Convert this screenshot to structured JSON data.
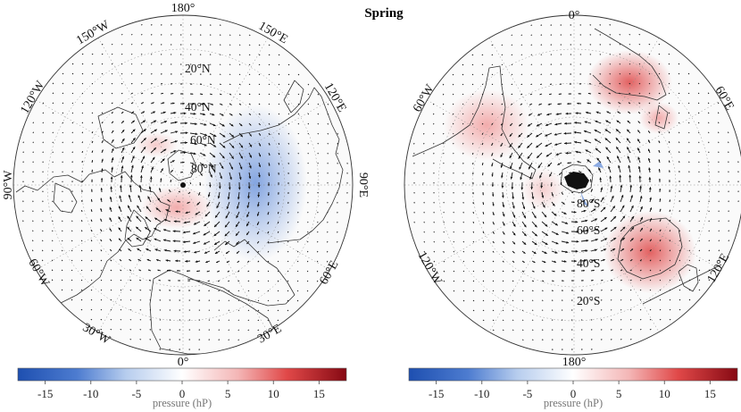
{
  "title": "Spring",
  "colorbar": {
    "label": "pressure (hP)",
    "ticks": [
      "-15",
      "-10",
      "-5",
      "0",
      "5",
      "10",
      "15"
    ],
    "tick_values": [
      -15,
      -10,
      -5,
      0,
      5,
      10,
      15
    ],
    "range": [
      -18,
      18
    ],
    "colors": {
      "low": "#2455b8",
      "mid": "#ffffff",
      "high": "#8b0a14"
    }
  },
  "north_map": {
    "lon_labels": {
      "top": "180°",
      "bottom": "0°",
      "left": "90°W",
      "right": "90°E",
      "upper_left_1": "150°W",
      "upper_left_2": "120°W",
      "upper_right_1": "150°E",
      "upper_right_2": "120°E",
      "lower_left_1": "60°W",
      "lower_left_2": "30°W",
      "lower_right_1": "60°E",
      "lower_right_2": "30°E"
    },
    "lat_labels": [
      "20°N",
      "40°N",
      "60°N",
      "80°N"
    ],
    "anomalies": [
      {
        "name": "siberia-low",
        "value": -7
      },
      {
        "name": "arctic-high",
        "value": 3
      }
    ]
  },
  "south_map": {
    "lon_labels": {
      "top": "0°",
      "bottom": "180°",
      "upper_left": "60°W",
      "upper_right": "60°E",
      "lower_left": "120°W",
      "lower_right": "120°E"
    },
    "lat_labels": [
      "80°S",
      "60°S",
      "40°S",
      "20°S"
    ],
    "anomalies": [
      {
        "name": "africa-high",
        "value": 8
      },
      {
        "name": "australia-high",
        "value": 9
      },
      {
        "name": "south-america-high",
        "value": 5
      },
      {
        "name": "indian-ocean-high",
        "value": 3
      }
    ]
  }
}
